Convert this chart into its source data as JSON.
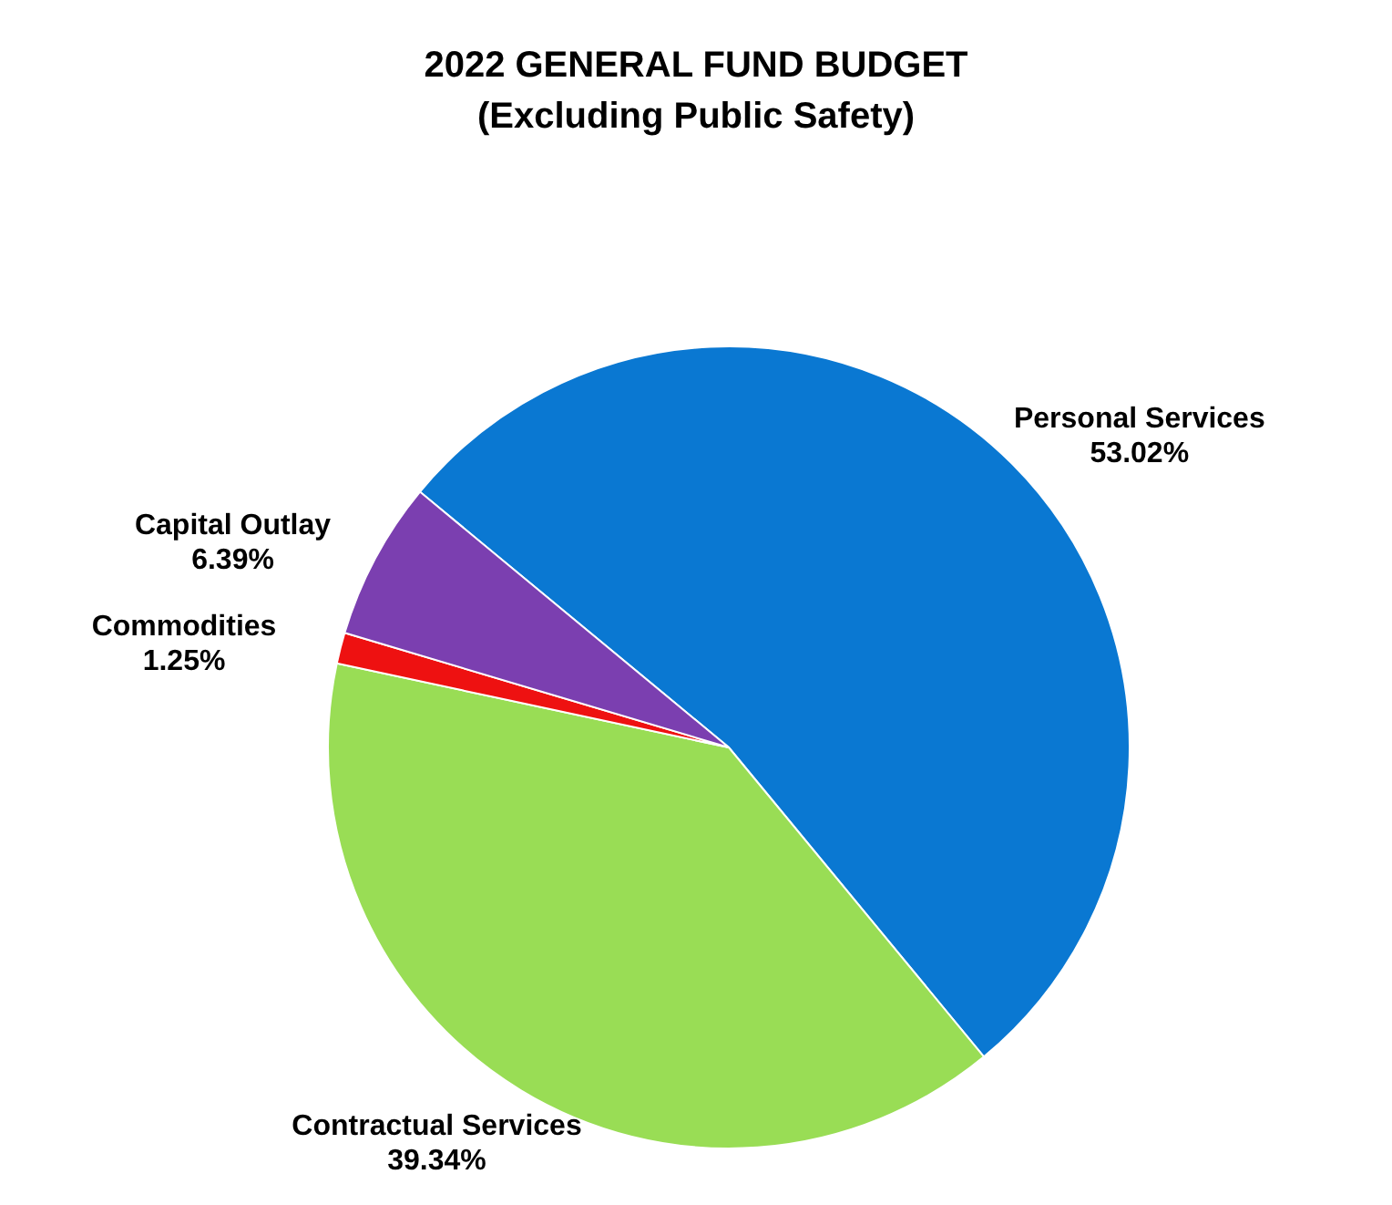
{
  "chart_data": {
    "type": "pie",
    "title": "2022 GENERAL FUND BUDGET",
    "subtitle": "(Excluding Public Safety)",
    "categories": [
      "Personal Services",
      "Contractual Services",
      "Commodities",
      "Capital Outlay"
    ],
    "values": [
      53.02,
      39.34,
      1.25,
      6.39
    ],
    "colors": [
      "#0a78d2",
      "#99dd55",
      "#ee1111",
      "#7b3fb0"
    ],
    "value_labels": [
      "53.02%",
      "39.34%",
      "1.25%",
      "6.39%"
    ]
  }
}
